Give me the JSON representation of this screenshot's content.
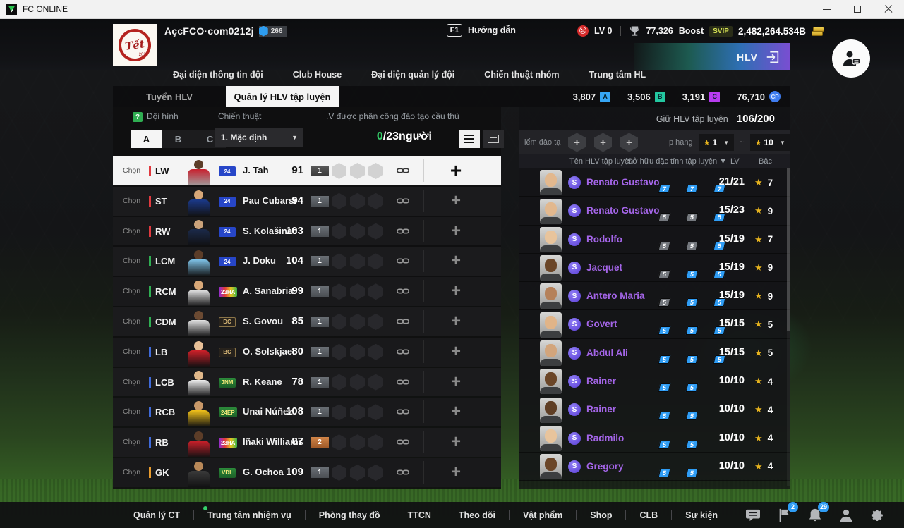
{
  "titlebar": {
    "app_name": "FC ONLINE"
  },
  "header": {
    "logo_text": "Tết",
    "logo_year": "2024",
    "account_name": "AçcFCO·com0212j",
    "account_level": "266",
    "nav": [
      "Đại diện thông tin đội",
      "Club House",
      "Đại diện quản lý đội",
      "Chiến thuật nhóm",
      "Trung tâm HL"
    ],
    "help_key": "F1",
    "help_label": "Hướng dẫn",
    "manager_level": "LV 0",
    "fc_value": "77,326",
    "boost_label": "Boost",
    "boost_badge": "SVIP",
    "money": "2,482,264.534B",
    "hlv_label": "HLV"
  },
  "tabs": [
    {
      "label": "Tuyển HLV",
      "active": false
    },
    {
      "label": "Quản lý HLV tập luyện",
      "active": true
    }
  ],
  "currencies": [
    {
      "value": "3,807",
      "badge": "A",
      "color": "#36a6f5",
      "shape": "square"
    },
    {
      "value": "3,506",
      "badge": "B",
      "color": "#23c8a0",
      "shape": "square"
    },
    {
      "value": "3,191",
      "badge": "C",
      "color": "#b83cf0",
      "shape": "square"
    },
    {
      "value": "76,710",
      "badge": "CP",
      "color": "#3f7df0",
      "shape": "round"
    }
  ],
  "squad_panel": {
    "formation_label": "Đội hình",
    "help_icon": "?",
    "tactic_label": "Chiến thuật",
    "assign_label": ".V được phân công đào tạo cầu thủ",
    "formation_tabs": [
      "A",
      "B",
      "C"
    ],
    "formation_active": "A",
    "tactic_value": "1. Mặc định",
    "assigned_count": "0",
    "assigned_suffix": "/23người",
    "select_label": "Chọn",
    "players": [
      {
        "pos": "LW",
        "group": "atk",
        "badge": "24",
        "badge_style": "blue",
        "name": "J. Tah",
        "rating": "91",
        "chip": "1",
        "chip_style": "gray",
        "selected": true,
        "kit": "#c8202e",
        "skin": "#5c3d28"
      },
      {
        "pos": "ST",
        "group": "atk",
        "badge": "24",
        "badge_style": "blue",
        "name": "Pau Cubarsí",
        "rating": "94",
        "chip": "1",
        "chip_style": "gray",
        "selected": false,
        "kit": "#1b3a8c",
        "skin": "#d8a878"
      },
      {
        "pos": "RW",
        "group": "atk",
        "badge": "24",
        "badge_style": "blue",
        "name": "S. Kolašinac",
        "rating": "103",
        "chip": "1",
        "chip_style": "gray",
        "selected": false,
        "kit": "#1b2a4a",
        "skin": "#caa27a"
      },
      {
        "pos": "LCM",
        "group": "mid",
        "badge": "24",
        "badge_style": "blue",
        "name": "J. Doku",
        "rating": "104",
        "chip": "1",
        "chip_style": "gray",
        "selected": false,
        "kit": "#7fc3e8",
        "skin": "#5c3d28"
      },
      {
        "pos": "RCM",
        "group": "mid",
        "badge": "23HA",
        "badge_style": "rainbow",
        "name": "A. Sanabria",
        "rating": "99",
        "chip": "1",
        "chip_style": "gray",
        "selected": false,
        "kit": "#e8e8e8",
        "skin": "#d8a878"
      },
      {
        "pos": "CDM",
        "group": "mid",
        "badge": "DC",
        "badge_style": "dark-gold",
        "name": "S. Govou",
        "rating": "85",
        "chip": "1",
        "chip_style": "gray",
        "selected": false,
        "kit": "#e4e4e4",
        "skin": "#6b4a32"
      },
      {
        "pos": "LB",
        "group": "def",
        "badge": "BC",
        "badge_style": "dark-gold",
        "name": "O. Solskjaer",
        "rating": "80",
        "chip": "1",
        "chip_style": "gray",
        "selected": false,
        "kit": "#d0202a",
        "skin": "#e8c098"
      },
      {
        "pos": "LCB",
        "group": "def",
        "badge": "JNM",
        "badge_style": "green",
        "name": "R. Keane",
        "rating": "78",
        "chip": "1",
        "chip_style": "gray",
        "selected": false,
        "kit": "#f0f0f0",
        "skin": "#e0b88a"
      },
      {
        "pos": "RCB",
        "group": "def",
        "badge": "24EP",
        "badge_style": "green",
        "name": "Unai Núñez",
        "rating": "108",
        "chip": "1",
        "chip_style": "gray",
        "selected": false,
        "kit": "#f2c21a",
        "skin": "#c89868"
      },
      {
        "pos": "RB",
        "group": "def",
        "badge": "23HA",
        "badge_style": "rainbow",
        "name": "Iñaki Williams",
        "rating": "87",
        "chip": "2",
        "chip_style": "orange",
        "selected": false,
        "kit": "#d0202a",
        "skin": "#5c3d28"
      },
      {
        "pos": "GK",
        "group": "gk",
        "badge": "VDL",
        "badge_style": "green",
        "name": "G. Ochoa",
        "rating": "109",
        "chip": "1",
        "chip_style": "gray",
        "selected": false,
        "kit": "#3a3a3a",
        "skin": "#b88858"
      }
    ]
  },
  "coach_panel": {
    "capacity_label": "Giữ HLV tập luyện",
    "capacity_value": "106/200",
    "filter": {
      "points_label": "iểm đào tạ",
      "rank_label": "p hạng",
      "rank_min": "1",
      "rank_max": "10",
      "range_separator": "~"
    },
    "table_header": {
      "name": "Tên HLV tập luyện",
      "traits": "Sở hữu đặc tính tập luyện ▼",
      "lv": "LV",
      "rank": "Bậc"
    },
    "coaches": [
      {
        "name": "Renato Gustavo",
        "grade": "S",
        "traits": [
          {
            "v": "7",
            "c": "blue"
          },
          {
            "v": "7",
            "c": "blue"
          },
          {
            "v": "7",
            "c": "blue"
          }
        ],
        "lv": "21/21",
        "stars": "7",
        "tone": "#e2b88e"
      },
      {
        "name": "Renato Gustavo",
        "grade": "S",
        "traits": [
          {
            "v": "5",
            "c": "gray"
          },
          {
            "v": "5",
            "c": "gray"
          },
          {
            "v": "5",
            "c": "blue"
          }
        ],
        "lv": "15/23",
        "stars": "9",
        "tone": "#e2b88e"
      },
      {
        "name": "Rodolfo",
        "grade": "S",
        "traits": [
          {
            "v": "5",
            "c": "gray"
          },
          {
            "v": "5",
            "c": "gray"
          },
          {
            "v": "5",
            "c": "blue"
          }
        ],
        "lv": "15/19",
        "stars": "7",
        "tone": "#e8c49c"
      },
      {
        "name": "Jacquet",
        "grade": "S",
        "traits": [
          {
            "v": "5",
            "c": "gray"
          },
          {
            "v": "5",
            "c": "blue"
          },
          {
            "v": "5",
            "c": "blue"
          }
        ],
        "lv": "15/19",
        "stars": "9",
        "tone": "#6b4628"
      },
      {
        "name": "Antero Maria",
        "grade": "S",
        "traits": [
          {
            "v": "5",
            "c": "gray"
          },
          {
            "v": "5",
            "c": "blue"
          },
          {
            "v": "5",
            "c": "blue"
          }
        ],
        "lv": "15/19",
        "stars": "9",
        "tone": "#b5815a"
      },
      {
        "name": "Govert",
        "grade": "S",
        "traits": [
          {
            "v": "5",
            "c": "blue"
          },
          {
            "v": "5",
            "c": "blue"
          },
          {
            "v": "5",
            "c": "blue"
          }
        ],
        "lv": "15/15",
        "stars": "5",
        "tone": "#e0b488"
      },
      {
        "name": "Abdul Ali",
        "grade": "S",
        "traits": [
          {
            "v": "5",
            "c": "blue"
          },
          {
            "v": "5",
            "c": "blue"
          },
          {
            "v": "5",
            "c": "blue"
          }
        ],
        "lv": "15/15",
        "stars": "5",
        "tone": "#d2a57c"
      },
      {
        "name": "Rainer",
        "grade": "S",
        "traits": [
          {
            "v": "5",
            "c": "blue"
          },
          {
            "v": "5",
            "c": "blue"
          }
        ],
        "lv": "10/10",
        "stars": "4",
        "tone": "#6b4628"
      },
      {
        "name": "Rainer",
        "grade": "S",
        "traits": [
          {
            "v": "5",
            "c": "blue"
          },
          {
            "v": "5",
            "c": "blue"
          }
        ],
        "lv": "10/10",
        "stars": "4",
        "tone": "#5f3e24"
      },
      {
        "name": "Radmilo",
        "grade": "S",
        "traits": [
          {
            "v": "5",
            "c": "blue"
          },
          {
            "v": "5",
            "c": "blue"
          }
        ],
        "lv": "10/10",
        "stars": "4",
        "tone": "#e8c49c"
      },
      {
        "name": "Gregory",
        "grade": "S",
        "traits": [
          {
            "v": "5",
            "c": "blue"
          },
          {
            "v": "5",
            "c": "blue"
          }
        ],
        "lv": "10/10",
        "stars": "4",
        "tone": "#6b4628"
      }
    ]
  },
  "bottom_nav": {
    "items": [
      {
        "label": "Quản lý CT",
        "dot": false
      },
      {
        "label": "Trung tâm nhiệm vụ",
        "dot": true
      },
      {
        "label": "Phòng thay đồ",
        "dot": false
      },
      {
        "label": "TTCN",
        "dot": false
      },
      {
        "label": "Theo dõi",
        "dot": false
      },
      {
        "label": "Vật phẩm",
        "dot": false
      },
      {
        "label": "Shop",
        "dot": false
      },
      {
        "label": "CLB",
        "dot": false
      },
      {
        "label": "Sự kiện",
        "dot": false
      }
    ],
    "mail_badge": "2",
    "bell_badge": "29"
  },
  "colors": {
    "attack": "#e0393f",
    "midfield": "#2fae52",
    "defense": "#3f6ad8",
    "goalkeeper": "#e89b2e",
    "coach_name": "#a465e8",
    "star": "#e6b31e",
    "chip_blue": "#2f9df5"
  }
}
